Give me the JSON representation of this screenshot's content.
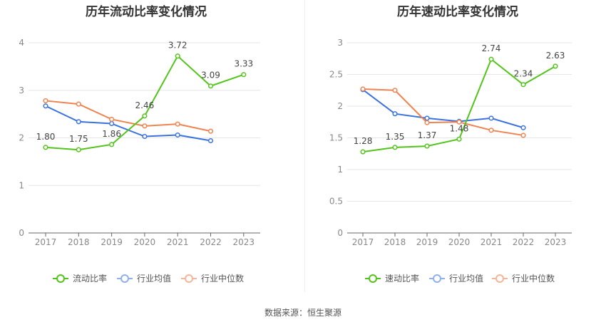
{
  "source": "数据来源：恒生聚源",
  "chart_data": [
    {
      "type": "line",
      "title": "历年流动比率变化情况",
      "categories": [
        "2017",
        "2018",
        "2019",
        "2020",
        "2021",
        "2022",
        "2023"
      ],
      "ylim": [
        0,
        4
      ],
      "yticks": [
        "0",
        "1",
        "2",
        "3",
        "4"
      ],
      "series": [
        {
          "name": "流动比率",
          "color": "#52c41a",
          "labels": true,
          "values": [
            1.8,
            1.75,
            1.86,
            2.46,
            3.72,
            3.09,
            3.33
          ],
          "value_labels": [
            "1.80",
            "1.75",
            "1.86",
            "2.46",
            "3.72",
            "3.09",
            "3.33"
          ]
        },
        {
          "name": "行业均值",
          "color": "#3b72e0",
          "values": [
            2.67,
            2.34,
            2.3,
            2.03,
            2.06,
            1.94,
            null
          ]
        },
        {
          "name": "行业中位数",
          "color": "#f0834f",
          "values": [
            2.78,
            2.71,
            2.39,
            2.25,
            2.29,
            2.14,
            null
          ]
        }
      ]
    },
    {
      "type": "line",
      "title": "历年速动比率变化情况",
      "categories": [
        "2017",
        "2018",
        "2019",
        "2020",
        "2021",
        "2022",
        "2023"
      ],
      "ylim": [
        0,
        3
      ],
      "yticks": [
        "0",
        "0.5",
        "1",
        "1.5",
        "2",
        "2.5",
        "3"
      ],
      "series": [
        {
          "name": "速动比率",
          "color": "#52c41a",
          "labels": true,
          "values": [
            1.28,
            1.35,
            1.37,
            1.48,
            2.74,
            2.34,
            2.63
          ],
          "value_labels": [
            "1.28",
            "1.35",
            "1.37",
            "1.48",
            "2.74",
            "2.34",
            "2.63"
          ]
        },
        {
          "name": "行业均值",
          "color": "#3b72e0",
          "values": [
            2.26,
            1.88,
            1.81,
            1.76,
            1.81,
            1.66,
            null
          ]
        },
        {
          "name": "行业中位数",
          "color": "#f0834f",
          "values": [
            2.27,
            2.25,
            1.74,
            1.75,
            1.62,
            1.54,
            null
          ]
        }
      ]
    }
  ]
}
